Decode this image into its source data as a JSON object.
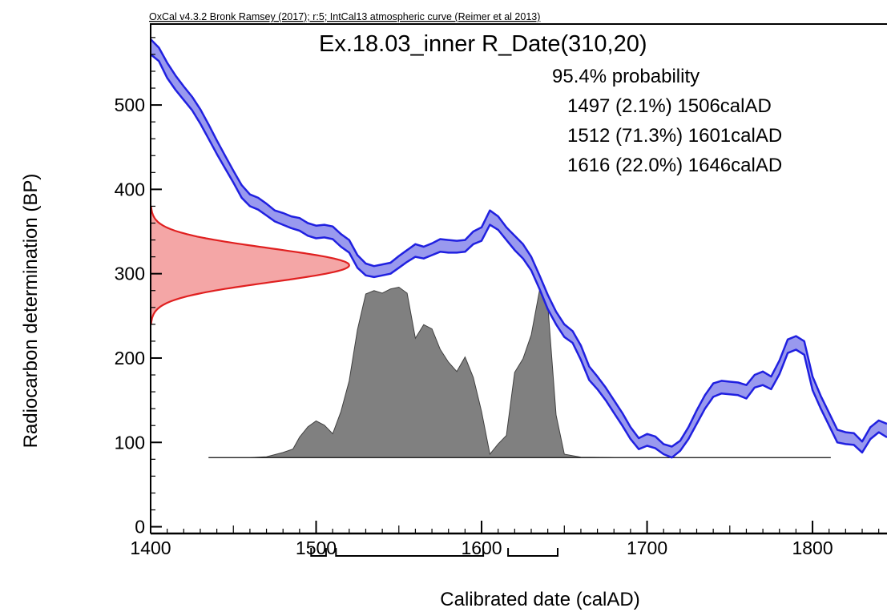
{
  "chart_data": {
    "type": "area",
    "header": "OxCal v4.3.2 Bronk Ramsey (2017); r:5; IntCal13 atmospheric curve (Reimer et al 2013)",
    "title": "Ex.18.03_inner R_Date(310,20)",
    "xlabel": "Calibrated date (calAD)",
    "ylabel": "Radiocarbon determination (BP)",
    "xlim": [
      1400,
      1845
    ],
    "ylim": [
      -8,
      596
    ],
    "x_ticks": [
      1400,
      1500,
      1600,
      1700,
      1800
    ],
    "y_ticks": [
      0,
      100,
      200,
      300,
      400,
      500
    ],
    "probability_label": "95.4% probability",
    "ranges": [
      {
        "from": 1497,
        "to": 1506,
        "percent": 2.1,
        "label": "1497 (2.1%) 1506calAD"
      },
      {
        "from": 1512,
        "to": 1601,
        "percent": 71.3,
        "label": "1512 (71.3%) 1601calAD"
      },
      {
        "from": 1616,
        "to": 1646,
        "percent": 22.0,
        "label": "1616 (22.0%) 1646calAD"
      }
    ],
    "calibration_curve": {
      "color": "#2020e0",
      "fill": "#9999ee",
      "points": [
        [
          1400,
          578,
          560
        ],
        [
          1405,
          568,
          552
        ],
        [
          1410,
          550,
          532
        ],
        [
          1415,
          535,
          518
        ],
        [
          1420,
          522,
          506
        ],
        [
          1425,
          510,
          494
        ],
        [
          1430,
          495,
          478
        ],
        [
          1435,
          477,
          460
        ],
        [
          1440,
          458,
          442
        ],
        [
          1445,
          440,
          425
        ],
        [
          1450,
          422,
          408
        ],
        [
          1455,
          405,
          390
        ],
        [
          1460,
          394,
          380
        ],
        [
          1465,
          390,
          376
        ],
        [
          1470,
          383,
          369
        ],
        [
          1475,
          375,
          362
        ],
        [
          1480,
          372,
          358
        ],
        [
          1485,
          368,
          354
        ],
        [
          1490,
          366,
          351
        ],
        [
          1495,
          360,
          345
        ],
        [
          1500,
          357,
          342
        ],
        [
          1505,
          358,
          343
        ],
        [
          1510,
          356,
          341
        ],
        [
          1515,
          347,
          332
        ],
        [
          1520,
          340,
          325
        ],
        [
          1525,
          322,
          307
        ],
        [
          1530,
          312,
          298
        ],
        [
          1535,
          309,
          296
        ],
        [
          1540,
          311,
          298
        ],
        [
          1545,
          313,
          300
        ],
        [
          1550,
          321,
          307
        ],
        [
          1555,
          328,
          314
        ],
        [
          1560,
          335,
          320
        ],
        [
          1565,
          332,
          318
        ],
        [
          1570,
          336,
          322
        ],
        [
          1575,
          341,
          326
        ],
        [
          1580,
          340,
          325
        ],
        [
          1585,
          339,
          325
        ],
        [
          1590,
          340,
          326
        ],
        [
          1595,
          350,
          335
        ],
        [
          1600,
          355,
          339
        ],
        [
          1605,
          375,
          358
        ],
        [
          1610,
          368,
          352
        ],
        [
          1615,
          355,
          340
        ],
        [
          1620,
          345,
          328
        ],
        [
          1625,
          335,
          318
        ],
        [
          1630,
          320,
          304
        ],
        [
          1635,
          298,
          282
        ],
        [
          1640,
          275,
          258
        ],
        [
          1645,
          255,
          240
        ],
        [
          1650,
          240,
          225
        ],
        [
          1655,
          232,
          218
        ],
        [
          1660,
          215,
          198
        ],
        [
          1665,
          190,
          174
        ],
        [
          1670,
          178,
          163
        ],
        [
          1675,
          165,
          150
        ],
        [
          1680,
          150,
          135
        ],
        [
          1685,
          135,
          120
        ],
        [
          1690,
          118,
          104
        ],
        [
          1695,
          105,
          92
        ],
        [
          1700,
          110,
          96
        ],
        [
          1705,
          107,
          93
        ],
        [
          1710,
          98,
          86
        ],
        [
          1715,
          95,
          82
        ],
        [
          1720,
          102,
          90
        ],
        [
          1725,
          118,
          104
        ],
        [
          1730,
          138,
          122
        ],
        [
          1735,
          156,
          140
        ],
        [
          1740,
          170,
          154
        ],
        [
          1745,
          173,
          158
        ],
        [
          1750,
          172,
          157
        ],
        [
          1755,
          171,
          156
        ],
        [
          1760,
          168,
          152
        ],
        [
          1765,
          180,
          165
        ],
        [
          1770,
          184,
          168
        ],
        [
          1775,
          178,
          163
        ],
        [
          1780,
          197,
          181
        ],
        [
          1785,
          222,
          206
        ],
        [
          1790,
          226,
          210
        ],
        [
          1795,
          220,
          204
        ],
        [
          1800,
          178,
          162
        ],
        [
          1805,
          155,
          140
        ],
        [
          1810,
          135,
          120
        ],
        [
          1815,
          115,
          100
        ],
        [
          1820,
          112,
          98
        ],
        [
          1825,
          111,
          97
        ],
        [
          1830,
          101,
          88
        ],
        [
          1835,
          118,
          104
        ],
        [
          1840,
          126,
          112
        ],
        [
          1845,
          122,
          106
        ]
      ]
    },
    "measurement_distribution": {
      "color": "#e02020",
      "fill": "#f4a6a6",
      "mean_bp": 310,
      "sigma_bp": 20,
      "peak_x": 1520
    },
    "calibrated_distribution": {
      "color": "#808080",
      "baseline_bp": 82,
      "peak_bp": 284,
      "x_range": [
        1435,
        1811
      ],
      "points": [
        [
          1435,
          0.0
        ],
        [
          1460,
          0.0
        ],
        [
          1470,
          0.005
        ],
        [
          1480,
          0.03
        ],
        [
          1486,
          0.05
        ],
        [
          1490,
          0.12
        ],
        [
          1495,
          0.18
        ],
        [
          1500,
          0.215
        ],
        [
          1505,
          0.19
        ],
        [
          1510,
          0.14
        ],
        [
          1515,
          0.27
        ],
        [
          1520,
          0.45
        ],
        [
          1525,
          0.75
        ],
        [
          1530,
          0.96
        ],
        [
          1535,
          0.98
        ],
        [
          1540,
          0.965
        ],
        [
          1545,
          0.99
        ],
        [
          1550,
          1.0
        ],
        [
          1555,
          0.965
        ],
        [
          1560,
          0.7
        ],
        [
          1565,
          0.78
        ],
        [
          1570,
          0.755
        ],
        [
          1575,
          0.635
        ],
        [
          1580,
          0.56
        ],
        [
          1585,
          0.505
        ],
        [
          1590,
          0.59
        ],
        [
          1595,
          0.47
        ],
        [
          1600,
          0.27
        ],
        [
          1605,
          0.02
        ],
        [
          1610,
          0.08
        ],
        [
          1615,
          0.13
        ],
        [
          1620,
          0.5
        ],
        [
          1625,
          0.58
        ],
        [
          1630,
          0.72
        ],
        [
          1635,
          0.98
        ],
        [
          1640,
          0.9
        ],
        [
          1645,
          0.25
        ],
        [
          1650,
          0.02
        ],
        [
          1660,
          0.002
        ],
        [
          1680,
          0.0
        ],
        [
          1811,
          0.0
        ]
      ]
    }
  }
}
